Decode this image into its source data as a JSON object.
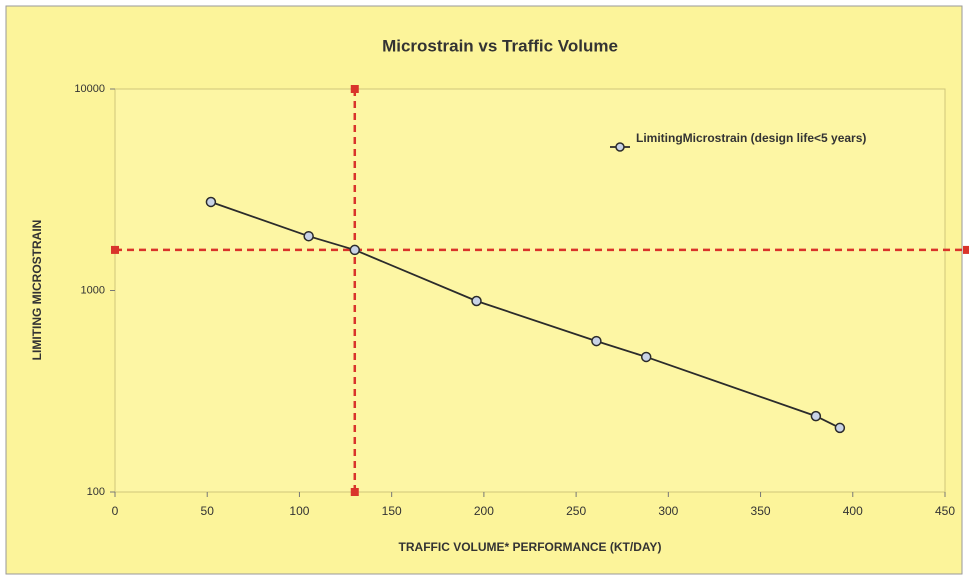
{
  "chart_data": {
    "type": "line",
    "title": "Microstrain vs Traffic Volume",
    "xlabel": "TRAFFIC VOLUME* PERFORMANCE (KT/DAY)",
    "ylabel": "LIMITING MICROSTRAIN",
    "x": [
      52,
      105,
      130,
      196,
      261,
      288,
      380,
      393
    ],
    "series": [
      {
        "name": "LimitingMicrostrain (design life<5 years)",
        "color": "#2b2b2b",
        "values": [
          2750,
          1860,
          1590,
          887,
          561,
          468,
          238,
          208
        ]
      }
    ],
    "xlim": [
      0,
      450
    ],
    "xticks": [
      0,
      50,
      100,
      150,
      200,
      250,
      300,
      350,
      400,
      450
    ],
    "ylim": [
      100,
      10000
    ],
    "yticks": [
      100,
      1000,
      10000
    ],
    "ylog": true,
    "grid": false,
    "legend": "upper right",
    "reference_lines": {
      "x": 130,
      "y": 1590,
      "color": "#d9342b"
    }
  }
}
